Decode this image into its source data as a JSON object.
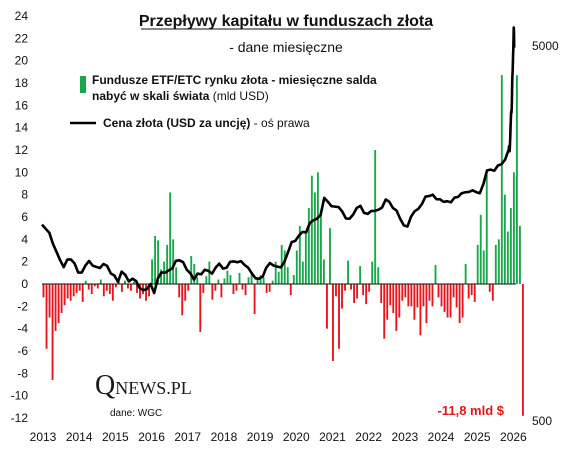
{
  "chart_data": {
    "type": "bar",
    "title": "Przepływy kapitału w funduszach złota",
    "subtitle": "- dane miesięczne",
    "legend": [
      {
        "name_bold": "Fundusze ETF/ETC rynku złota - miesięczne salda",
        "name_bold2": "nabyć w skali świata",
        "name_normal": " (mld USD)",
        "color": "#1aa64a",
        "kind": "bar"
      },
      {
        "name_bold": "Cena złota (USD za uncję)",
        "name_normal": " - oś prawa",
        "color": "#000000",
        "kind": "line"
      }
    ],
    "legend_position": "top-left",
    "x_ticks": [
      "2013",
      "2014",
      "2015",
      "2016",
      "2017",
      "2018",
      "2019",
      "2020",
      "2021",
      "2022",
      "2023",
      "2024",
      "2025",
      "2026"
    ],
    "x_start": 2013,
    "x_end": 2026.1,
    "y_ticks": [
      "24",
      "22",
      "20",
      "18",
      "16",
      "14",
      "12",
      "10",
      "8",
      "6",
      "4",
      "2",
      "0",
      "-2",
      "-4",
      "-6",
      "-8",
      "-10",
      "-12"
    ],
    "ylim": [
      -12,
      24
    ],
    "y2_ticks": [
      "5000",
      "500"
    ],
    "y2_scale": "log",
    "y2lim": [
      500,
      5000
    ],
    "grid": false,
    "positive_color": "#1aa64a",
    "negative_color": "#e8141b",
    "flows": [
      -1.2,
      -5.8,
      -3.0,
      -8.6,
      -4.2,
      -3.5,
      -2.6,
      -1.9,
      -1.3,
      -1.5,
      -1.1,
      -0.8,
      -0.6,
      -1.6,
      0.3,
      -0.5,
      -0.9,
      -0.2,
      -0.4,
      0.4,
      -1.1,
      -0.6,
      -0.9,
      -1.5,
      -0.3,
      0.2,
      -0.7,
      0.3,
      -0.4,
      -0.6,
      0.2,
      -0.8,
      -1.3,
      -0.9,
      -1.5,
      -1.1,
      2.2,
      4.3,
      3.9,
      1.3,
      2.0,
      3.5,
      8.2,
      4.0,
      1.5,
      -1.2,
      -2.8,
      -1.5,
      -0.6,
      2.5,
      1.8,
      0.6,
      -4.3,
      -0.8,
      0.7,
      2.0,
      -1.4,
      -0.6,
      0.4,
      -1.2,
      0.5,
      1.2,
      0.8,
      -0.9,
      -0.6,
      1.0,
      -0.5,
      -1.0,
      0.6,
      0.9,
      -2.7,
      0.5,
      0.8,
      0.6,
      -0.8,
      -0.7,
      0.3,
      2.0,
      1.1,
      3.5,
      3.0,
      1.5,
      -1.0,
      0.8,
      3.0,
      5.2,
      2.0,
      4.5,
      6.8,
      9.7,
      8.2,
      10.0,
      6.3,
      2.2,
      -4.0,
      5.0,
      -6.9,
      -1.1,
      -5.8,
      -2.2,
      -0.6,
      2.1,
      -0.5,
      -1.7,
      -1.3,
      1.6,
      -1.0,
      -1.8,
      -0.7,
      2.0,
      12.0,
      1.5,
      -1.7,
      -4.9,
      -3.2,
      -1.9,
      -2.6,
      -4.2,
      -3.0,
      -1.5,
      -1.2,
      -2.0,
      -2.0,
      -3.2,
      -2.1,
      -4.6,
      -2.0,
      -3.5,
      -1.5,
      -2.0,
      1.7,
      -1.2,
      -2.0,
      -2.5,
      -3.0,
      -3.0,
      -1.2,
      -2.1,
      -3.5,
      -3.0,
      1.8,
      -1.3,
      -1.0,
      -1.6,
      3.5,
      6.2,
      3.0,
      9.8,
      -0.7,
      -1.5,
      3.5,
      4.0,
      18.7,
      8.0,
      4.7,
      6.8,
      10.0,
      18.7,
      5.2,
      -11.8
    ],
    "price": [
      [
        2013.0,
        1670
      ],
      [
        2013.1,
        1628
      ],
      [
        2013.2,
        1590
      ],
      [
        2013.3,
        1487
      ],
      [
        2013.4,
        1413
      ],
      [
        2013.5,
        1343
      ],
      [
        2013.6,
        1286
      ],
      [
        2013.7,
        1347
      ],
      [
        2013.8,
        1348
      ],
      [
        2013.9,
        1316
      ],
      [
        2014.0,
        1244
      ],
      [
        2014.1,
        1244
      ],
      [
        2014.2,
        1299
      ],
      [
        2014.3,
        1336
      ],
      [
        2014.4,
        1298
      ],
      [
        2014.5,
        1288
      ],
      [
        2014.6,
        1279
      ],
      [
        2014.7,
        1311
      ],
      [
        2014.8,
        1296
      ],
      [
        2014.9,
        1238
      ],
      [
        2015.0,
        1222
      ],
      [
        2015.1,
        1175
      ],
      [
        2015.2,
        1251
      ],
      [
        2015.3,
        1227
      ],
      [
        2015.4,
        1178
      ],
      [
        2015.5,
        1198
      ],
      [
        2015.6,
        1181
      ],
      [
        2015.7,
        1131
      ],
      [
        2015.8,
        1117
      ],
      [
        2015.9,
        1124
      ],
      [
        2016.0,
        1160
      ],
      [
        2016.1,
        1097
      ],
      [
        2016.2,
        1199
      ],
      [
        2016.3,
        1245
      ],
      [
        2016.4,
        1242
      ],
      [
        2016.5,
        1260
      ],
      [
        2016.6,
        1276
      ],
      [
        2016.7,
        1337
      ],
      [
        2016.8,
        1341
      ],
      [
        2016.9,
        1326
      ],
      [
        2017.0,
        1266
      ],
      [
        2017.1,
        1238
      ],
      [
        2017.2,
        1192
      ],
      [
        2017.3,
        1236
      ],
      [
        2017.4,
        1231
      ],
      [
        2017.5,
        1266
      ],
      [
        2017.6,
        1257
      ],
      [
        2017.7,
        1236
      ],
      [
        2017.8,
        1283
      ],
      [
        2017.9,
        1314
      ],
      [
        2018.0,
        1275
      ],
      [
        2018.1,
        1281
      ],
      [
        2018.2,
        1329
      ],
      [
        2018.3,
        1332
      ],
      [
        2018.4,
        1325
      ],
      [
        2018.5,
        1334
      ],
      [
        2018.6,
        1303
      ],
      [
        2018.7,
        1281
      ],
      [
        2018.8,
        1238
      ],
      [
        2018.9,
        1201
      ],
      [
        2019.0,
        1198
      ],
      [
        2019.1,
        1214
      ],
      [
        2019.2,
        1283
      ],
      [
        2019.3,
        1319
      ],
      [
        2019.4,
        1299
      ],
      [
        2019.5,
        1290
      ],
      [
        2019.6,
        1284
      ],
      [
        2019.7,
        1330
      ],
      [
        2019.8,
        1410
      ],
      [
        2019.9,
        1500
      ],
      [
        2020.0,
        1511
      ],
      [
        2020.1,
        1560
      ],
      [
        2020.2,
        1597
      ],
      [
        2020.3,
        1591
      ],
      [
        2020.4,
        1685
      ],
      [
        2020.5,
        1715
      ],
      [
        2020.6,
        1732
      ],
      [
        2020.7,
        1772
      ],
      [
        2020.8,
        1968
      ],
      [
        2020.9,
        1922
      ],
      [
        2021.0,
        1870
      ],
      [
        2021.1,
        1865
      ],
      [
        2021.2,
        1859
      ],
      [
        2021.3,
        1808
      ],
      [
        2021.4,
        1734
      ],
      [
        2021.5,
        1731
      ],
      [
        2021.6,
        1777
      ],
      [
        2021.7,
        1850
      ],
      [
        2021.8,
        1874
      ],
      [
        2021.9,
        1794
      ],
      [
        2022.0,
        1783
      ],
      [
        2022.1,
        1815
      ],
      [
        2022.2,
        1818
      ],
      [
        2022.3,
        1829
      ],
      [
        2022.4,
        1855
      ],
      [
        2022.5,
        1949
      ],
      [
        2022.6,
        1920
      ],
      [
        2022.7,
        1848
      ],
      [
        2022.8,
        1820
      ],
      [
        2022.9,
        1730
      ],
      [
        2023.0,
        1662
      ],
      [
        2023.1,
        1650
      ],
      [
        2023.2,
        1754
      ],
      [
        2023.3,
        1813
      ],
      [
        2023.4,
        1839
      ],
      [
        2023.5,
        1895
      ],
      [
        2023.6,
        1984
      ],
      [
        2023.7,
        1990
      ],
      [
        2023.8,
        2006
      ],
      [
        2023.9,
        1952
      ],
      [
        2024.0,
        1951
      ],
      [
        2024.1,
        1920
      ],
      [
        2024.2,
        1928
      ],
      [
        2024.3,
        1915
      ],
      [
        2024.4,
        1970
      ],
      [
        2024.5,
        1980
      ],
      [
        2024.6,
        2025
      ],
      [
        2024.7,
        2037
      ],
      [
        2024.8,
        2041
      ],
      [
        2024.9,
        2061
      ],
      [
        2025.0,
        2039
      ],
      [
        2025.1,
        2024
      ],
      [
        2025.2,
        2145
      ],
      [
        2025.3,
        2330
      ],
      [
        2025.4,
        2340
      ],
      [
        2025.5,
        2325
      ],
      [
        2025.6,
        2400
      ],
      [
        2025.7,
        2420
      ],
      [
        2025.8,
        2490
      ],
      [
        2025.9,
        2650
      ],
      [
        2025.93,
        2700
      ],
      [
        2025.96,
        2660
      ],
      [
        2025.99,
        2640
      ],
      [
        2026.02,
        2620
      ],
      [
        2026.05,
        2700
      ],
      [
        2026.08,
        2800
      ],
      [
        2026.11,
        2900
      ],
      [
        2026.14,
        3050
      ],
      [
        2026.17,
        3150
      ],
      [
        2026.2,
        3300
      ],
      [
        2026.23,
        3350
      ],
      [
        2026.26,
        3320
      ],
      [
        2026.29,
        3400
      ],
      [
        2026.32,
        3600
      ],
      [
        2026.35,
        3950
      ],
      [
        2026.38,
        4150
      ],
      [
        2026.41,
        4250
      ],
      [
        2026.44,
        4450
      ],
      [
        2026.47,
        4700
      ],
      [
        2026.5,
        4900
      ],
      [
        2026.53,
        5200
      ],
      [
        2026.56,
        5600
      ],
      [
        2026.59,
        5500
      ],
      [
        2026.62,
        4950
      ]
    ],
    "annotation": "-11,8 mld $",
    "logo_q": "Q",
    "logo_rest": "NEWS.PL",
    "source": "dane: WGC"
  }
}
